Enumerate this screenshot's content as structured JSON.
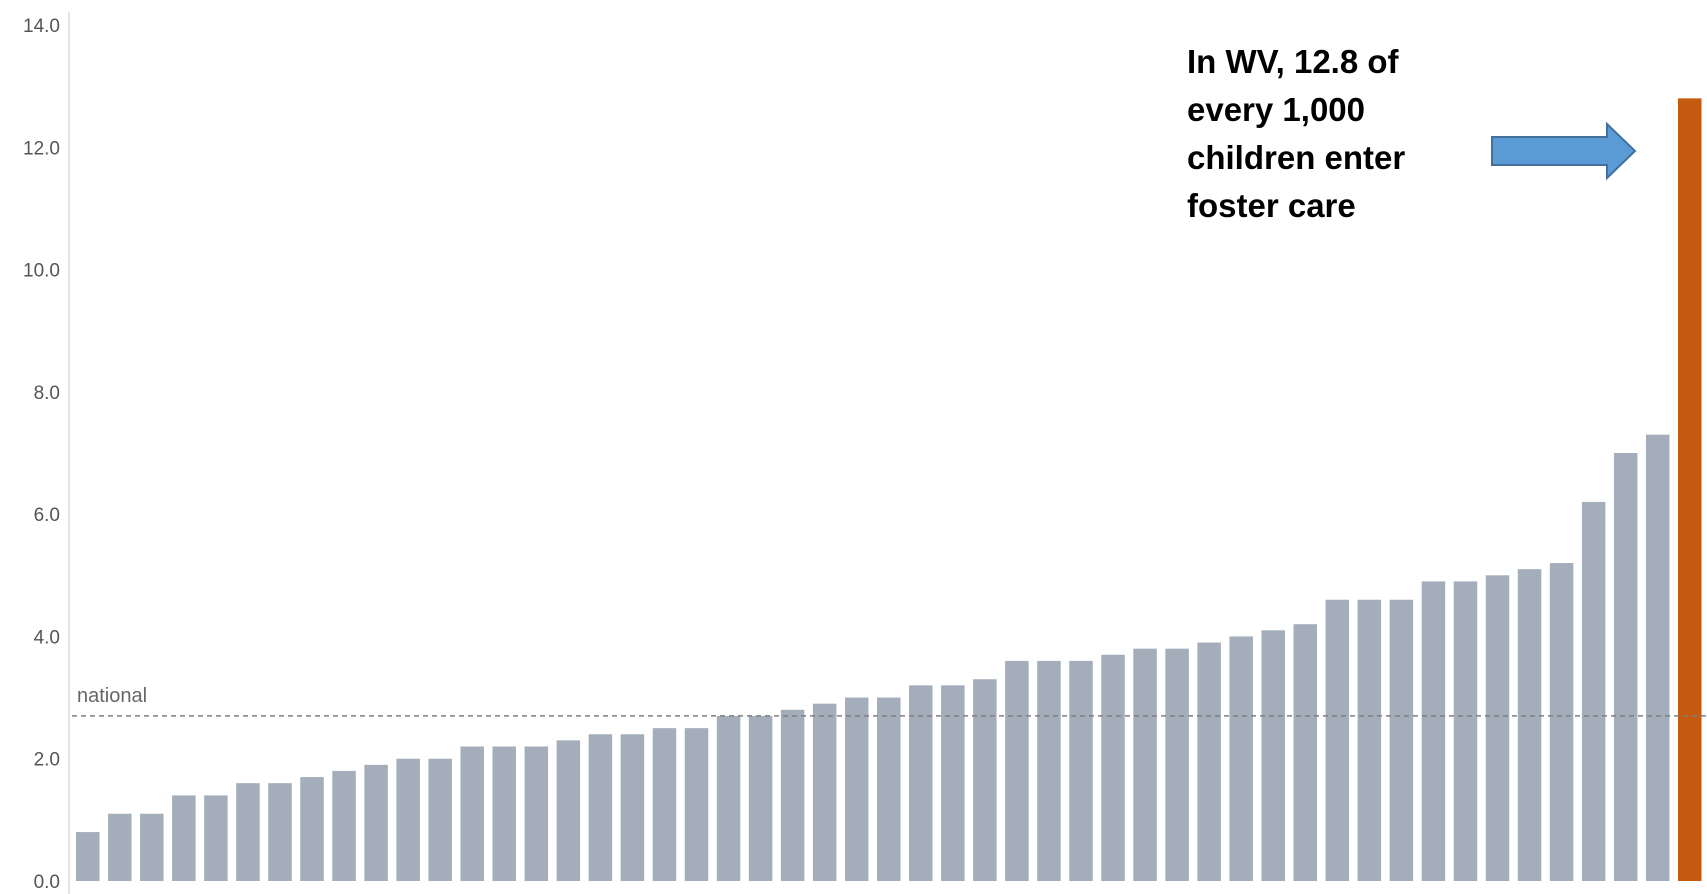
{
  "chart_data": {
    "type": "bar",
    "ylim": [
      0,
      14
    ],
    "y_ticks": [
      "0.0",
      "2.0",
      "4.0",
      "6.0",
      "8.0",
      "10.0",
      "12.0",
      "14.0"
    ],
    "y_tick_values": [
      0,
      2,
      4,
      6,
      8,
      10,
      12,
      14
    ],
    "values": [
      0.8,
      1.1,
      1.1,
      1.4,
      1.4,
      1.6,
      1.6,
      1.7,
      1.8,
      1.9,
      2.0,
      2.0,
      2.2,
      2.2,
      2.2,
      2.3,
      2.4,
      2.4,
      2.5,
      2.5,
      2.7,
      2.7,
      2.8,
      2.9,
      3.0,
      3.0,
      3.2,
      3.2,
      3.3,
      3.6,
      3.6,
      3.6,
      3.7,
      3.8,
      3.8,
      3.9,
      4.0,
      4.1,
      4.2,
      4.6,
      4.6,
      4.6,
      4.9,
      4.9,
      5.0,
      5.1,
      5.2,
      6.2,
      7.0,
      7.3,
      12.8
    ],
    "highlight_index": 50,
    "bar_color": "#a3aeba",
    "highlight_color": "#c55a11",
    "reference_line": {
      "label": "national",
      "value": 2.7
    },
    "grid": false
  },
  "annotation": {
    "lines": [
      "In WV, 12.8 of",
      "every 1,000",
      "children enter",
      "foster care"
    ]
  },
  "arrow": {
    "color": "#5b9bd5",
    "border_color": "#41719c",
    "direction": "right"
  }
}
